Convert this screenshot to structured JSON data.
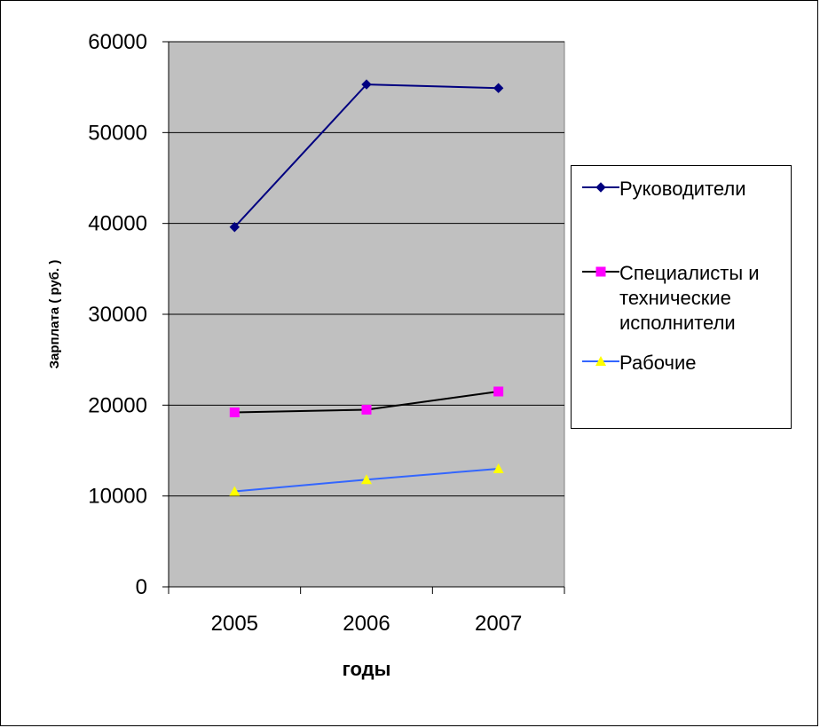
{
  "chart_data": {
    "type": "line",
    "title": "",
    "xlabel": "годы",
    "ylabel": "Зарплата ( руб. )",
    "categories": [
      "2005",
      "2006",
      "2007"
    ],
    "ylim": [
      0,
      60000
    ],
    "yticks": [
      "0",
      "10000",
      "20000",
      "30000",
      "40000",
      "50000",
      "60000"
    ],
    "grid": true,
    "legend_position": "right",
    "plot_background": "#C0C0C0",
    "series": [
      {
        "name": "Руководители",
        "values": [
          39600,
          55300,
          54900
        ],
        "color": "#000080",
        "marker": "diamond"
      },
      {
        "name": "Специалисты и технические исполнители",
        "values": [
          19200,
          19500,
          21500
        ],
        "color": "#000000",
        "marker_color": "#FF00FF",
        "marker": "square"
      },
      {
        "name": "Рабочие",
        "values": [
          10500,
          11800,
          13000
        ],
        "color": "#3366FF",
        "marker_color": "#FFFF00",
        "marker": "triangle"
      }
    ]
  }
}
